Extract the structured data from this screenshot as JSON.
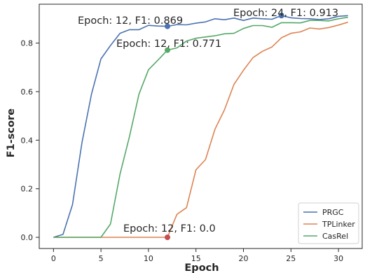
{
  "chart_data": {
    "type": "line",
    "xlabel": "Epoch",
    "ylabel": "F1-score",
    "xlim": [
      -1.5,
      32.5
    ],
    "ylim": [
      -0.046,
      0.96
    ],
    "xticks": [
      0,
      5,
      10,
      15,
      20,
      25,
      30
    ],
    "yticks": [
      0.0,
      0.2,
      0.4,
      0.6,
      0.8
    ],
    "xtick_labels": [
      "0",
      "5",
      "10",
      "15",
      "20",
      "25",
      "30"
    ],
    "ytick_labels": [
      "0.0",
      "0.2",
      "0.4",
      "0.6",
      "0.8"
    ],
    "grid": false,
    "legend_position": "lower-right",
    "x": [
      0,
      1,
      2,
      3,
      4,
      5,
      6,
      7,
      8,
      9,
      10,
      11,
      12,
      13,
      14,
      15,
      16,
      17,
      18,
      19,
      20,
      21,
      22,
      23,
      24,
      25,
      26,
      27,
      28,
      29,
      30,
      31
    ],
    "series": [
      {
        "name": "PRGC",
        "color": "#4c72b0",
        "values": [
          0.0,
          0.012,
          0.135,
          0.39,
          0.59,
          0.735,
          0.79,
          0.84,
          0.855,
          0.855,
          0.873,
          0.87,
          0.869,
          0.876,
          0.875,
          0.882,
          0.887,
          0.9,
          0.896,
          0.903,
          0.893,
          0.903,
          0.9,
          0.898,
          0.913,
          0.904,
          0.901,
          0.9,
          0.897,
          0.9,
          0.91,
          0.913
        ]
      },
      {
        "name": "TPLinker",
        "color": "#dd8452",
        "values": [
          0.0,
          0.0,
          0.0,
          0.0,
          0.0,
          0.0,
          0.0,
          0.0,
          0.0,
          0.0,
          0.0,
          0.0,
          0.0,
          0.095,
          0.122,
          0.278,
          0.32,
          0.445,
          0.525,
          0.63,
          0.688,
          0.74,
          0.766,
          0.784,
          0.822,
          0.84,
          0.846,
          0.862,
          0.858,
          0.864,
          0.874,
          0.886
        ]
      },
      {
        "name": "CasRel",
        "color": "#55a868",
        "values": [
          0.0,
          0.0,
          0.0,
          0.0,
          0.0,
          0.0,
          0.055,
          0.26,
          0.415,
          0.59,
          0.69,
          0.73,
          0.771,
          0.78,
          0.808,
          0.82,
          0.825,
          0.83,
          0.838,
          0.84,
          0.86,
          0.872,
          0.872,
          0.865,
          0.884,
          0.884,
          0.883,
          0.893,
          0.893,
          0.891,
          0.9,
          0.906
        ]
      }
    ],
    "markers": [
      {
        "series": "PRGC",
        "x": 12,
        "y": 0.869,
        "color": "#4c72b0"
      },
      {
        "series": "CasRel",
        "x": 12,
        "y": 0.771,
        "color": "#55a868"
      },
      {
        "series": "PRGC",
        "x": 24,
        "y": 0.913,
        "color": "#4c72b0"
      },
      {
        "series": "TPLinker",
        "x": 12,
        "y": 0.0,
        "color": "#c44e52"
      }
    ],
    "annotations": [
      {
        "text": "Epoch: 12, F1: 0.869"
      },
      {
        "text": "Epoch: 12, F1: 0.771"
      },
      {
        "text": "Epoch: 24, F1: 0.913"
      },
      {
        "text": "Epoch: 12, F1: 0.0"
      }
    ]
  }
}
